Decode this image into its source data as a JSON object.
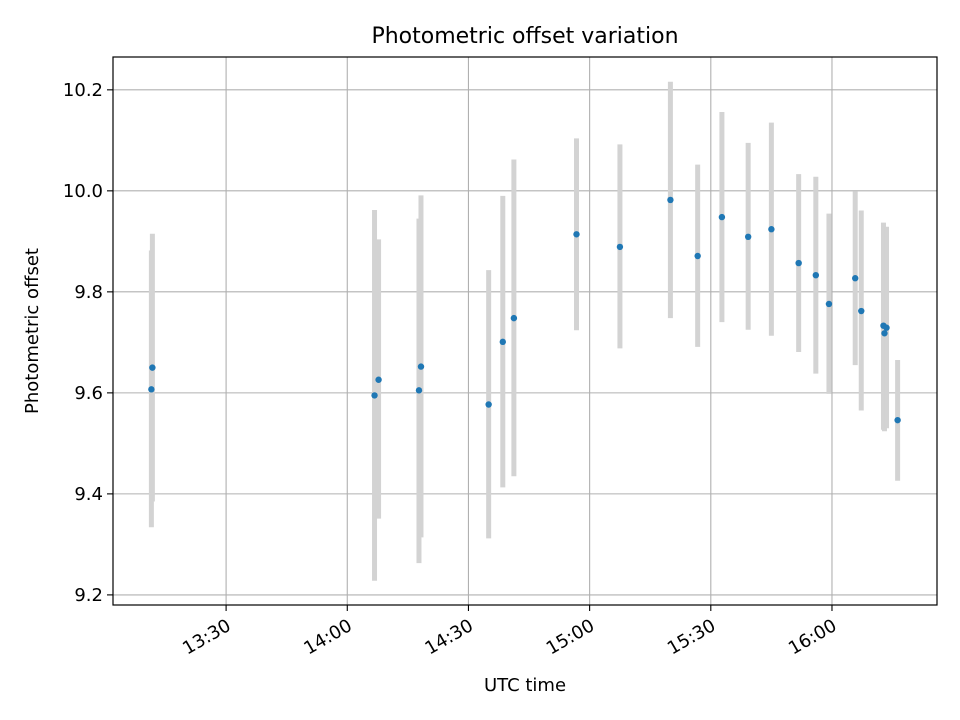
{
  "chart_data": {
    "type": "scatter",
    "title": "Photometric offset variation",
    "xlabel": "UTC time",
    "ylabel": "Photometric offset",
    "grid": true,
    "xlim": [
      "13:02",
      "16:26"
    ],
    "ylim": [
      9.18,
      10.265
    ],
    "x_ticks": [
      "13:30",
      "14:00",
      "14:30",
      "15:00",
      "15:30",
      "16:00"
    ],
    "y_ticks": [
      9.2,
      9.4,
      9.6,
      9.8,
      10.0,
      10.2
    ],
    "marker_color": "#1f77b4",
    "errorbar_color": "#d3d3d3",
    "points": [
      {
        "x": "13:11:30",
        "y": 9.607,
        "ylo": 9.334,
        "yhi": 9.882
      },
      {
        "x": "13:11:45",
        "y": 9.65,
        "ylo": 9.385,
        "yhi": 9.915
      },
      {
        "x": "14:06:45",
        "y": 9.595,
        "ylo": 9.228,
        "yhi": 9.962
      },
      {
        "x": "14:07:45",
        "y": 9.626,
        "ylo": 9.351,
        "yhi": 9.904
      },
      {
        "x": "14:17:45",
        "y": 9.605,
        "ylo": 9.263,
        "yhi": 9.945
      },
      {
        "x": "14:18:15",
        "y": 9.652,
        "ylo": 9.314,
        "yhi": 9.991
      },
      {
        "x": "14:35:00",
        "y": 9.577,
        "ylo": 9.312,
        "yhi": 9.843
      },
      {
        "x": "14:38:30",
        "y": 9.701,
        "ylo": 9.413,
        "yhi": 9.99
      },
      {
        "x": "14:41:15",
        "y": 9.748,
        "ylo": 9.435,
        "yhi": 10.062
      },
      {
        "x": "14:56:45",
        "y": 9.914,
        "ylo": 9.724,
        "yhi": 10.104
      },
      {
        "x": "15:07:30",
        "y": 9.889,
        "ylo": 9.688,
        "yhi": 10.092
      },
      {
        "x": "15:20:00",
        "y": 9.982,
        "ylo": 9.748,
        "yhi": 10.216
      },
      {
        "x": "15:26:45",
        "y": 9.871,
        "ylo": 9.691,
        "yhi": 10.052
      },
      {
        "x": "15:32:45",
        "y": 9.948,
        "ylo": 9.74,
        "yhi": 10.156
      },
      {
        "x": "15:39:15",
        "y": 9.909,
        "ylo": 9.725,
        "yhi": 10.095
      },
      {
        "x": "15:45:00",
        "y": 9.924,
        "ylo": 9.713,
        "yhi": 10.135
      },
      {
        "x": "15:51:45",
        "y": 9.857,
        "ylo": 9.681,
        "yhi": 10.033
      },
      {
        "x": "15:56:00",
        "y": 9.833,
        "ylo": 9.638,
        "yhi": 10.028
      },
      {
        "x": "15:59:15",
        "y": 9.776,
        "ylo": 9.598,
        "yhi": 9.955
      },
      {
        "x": "16:05:45",
        "y": 9.827,
        "ylo": 9.655,
        "yhi": 9.999
      },
      {
        "x": "16:07:15",
        "y": 9.762,
        "ylo": 9.565,
        "yhi": 9.961
      },
      {
        "x": "16:12:45",
        "y": 9.733,
        "ylo": 9.527,
        "yhi": 9.937
      },
      {
        "x": "16:13:00",
        "y": 9.718,
        "ylo": 9.524,
        "yhi": 9.912
      },
      {
        "x": "16:13:30",
        "y": 9.729,
        "ylo": 9.53,
        "yhi": 9.929
      },
      {
        "x": "16:16:15",
        "y": 9.546,
        "ylo": 9.426,
        "yhi": 9.665
      }
    ]
  }
}
